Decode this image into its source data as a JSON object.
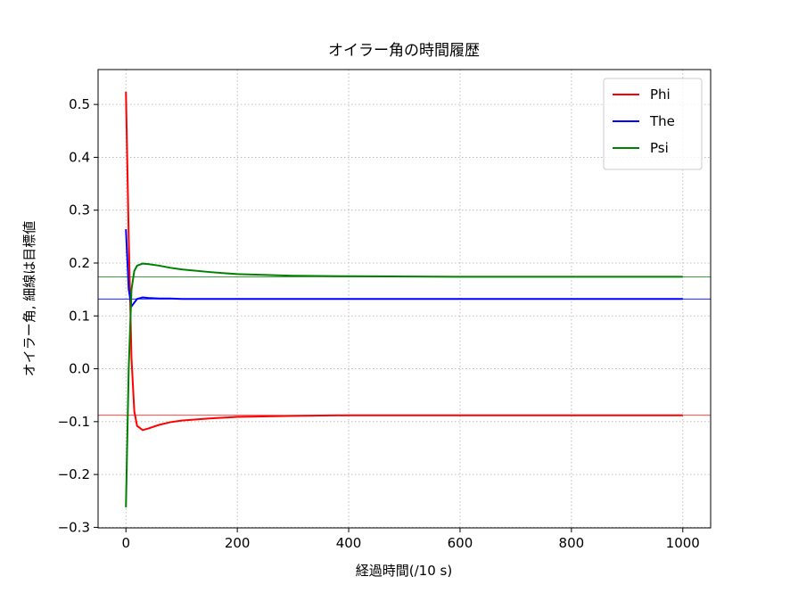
{
  "chart_data": {
    "type": "line",
    "title": "オイラー角の時間履歴",
    "x_label": "経過時間(/10 s)",
    "y_label": "オイラー角, 細線は目標値",
    "x": [
      0,
      5,
      10,
      15,
      20,
      30,
      40,
      60,
      80,
      100,
      150,
      200,
      300,
      400,
      600,
      800,
      1000
    ],
    "series": [
      {
        "name": "Phi",
        "color": "#ff0000",
        "target": -0.088,
        "values": [
          0.524,
          0.25,
          0.02,
          -0.08,
          -0.108,
          -0.116,
          -0.113,
          -0.106,
          -0.101,
          -0.098,
          -0.094,
          -0.091,
          -0.089,
          -0.088,
          -0.088,
          -0.088,
          -0.088
        ]
      },
      {
        "name": "The",
        "color": "#0000ff",
        "target": 0.132,
        "values": [
          0.264,
          0.15,
          0.118,
          0.125,
          0.132,
          0.135,
          0.134,
          0.133,
          0.133,
          0.132,
          0.132,
          0.132,
          0.132,
          0.132,
          0.132,
          0.132,
          0.132
        ]
      },
      {
        "name": "Psi",
        "color": "#008000",
        "target": 0.174,
        "values": [
          -0.262,
          0.0,
          0.15,
          0.185,
          0.195,
          0.199,
          0.198,
          0.195,
          0.191,
          0.188,
          0.183,
          0.179,
          0.176,
          0.175,
          0.174,
          0.174,
          0.174
        ]
      }
    ],
    "xlim": [
      -50,
      1050
    ],
    "ylim": [
      -0.301,
      0.566
    ],
    "xticks": [
      0,
      200,
      400,
      600,
      800,
      1000
    ],
    "yticks": [
      {
        "value": -0.3,
        "label": "−0.3"
      },
      {
        "value": -0.2,
        "label": "−0.2"
      },
      {
        "value": -0.1,
        "label": "−0.1"
      },
      {
        "value": 0,
        "label": "0.0"
      },
      0.1,
      0.2,
      0.3,
      0.4,
      0.5
    ],
    "grid": true,
    "legend": "upper right"
  }
}
